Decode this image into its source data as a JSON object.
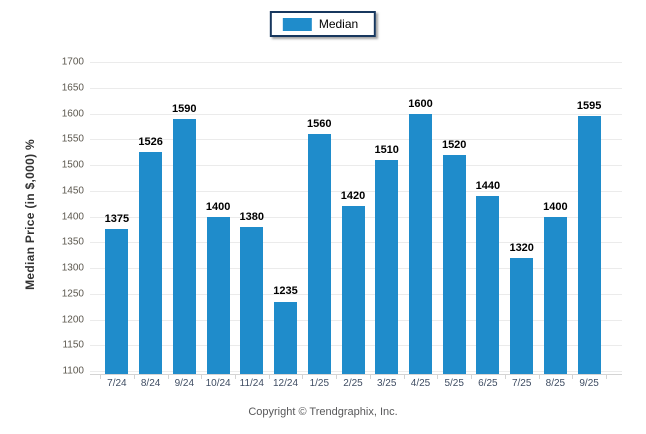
{
  "legend": {
    "label": "Median",
    "swatch_color": "#1f8ccb",
    "border_color": "#17375e"
  },
  "footer": {
    "copyright": "Copyright © Trendgraphix, Inc."
  },
  "colors": {
    "bar": "#1f8ccb",
    "gridline": "#ebebeb",
    "axis_line": "#d4d4d4",
    "y_tick_label": "#5c584f",
    "x_tick_label": "#3f4d63",
    "value_label": "#000000",
    "y_title": "#333333"
  },
  "chart_data": {
    "type": "bar",
    "title": "",
    "categories": [
      "7/24",
      "8/24",
      "9/24",
      "10/24",
      "11/24",
      "12/24",
      "1/25",
      "2/25",
      "3/25",
      "4/25",
      "5/25",
      "6/25",
      "7/25",
      "8/25",
      "9/25"
    ],
    "series": [
      {
        "name": "Median",
        "values": [
          1375,
          1526,
          1590,
          1400,
          1380,
          1235,
          1560,
          1420,
          1510,
          1600,
          1520,
          1440,
          1320,
          1400,
          1595
        ]
      }
    ],
    "xlabel": "",
    "ylabel": "Median Price (in $,000) %",
    "ylim": [
      1100,
      1700
    ],
    "y_ticks": [
      1100,
      1150,
      1200,
      1250,
      1300,
      1350,
      1400,
      1450,
      1500,
      1550,
      1600,
      1650,
      1700
    ],
    "grid": true,
    "legend_position": "top-center",
    "data_labels": true
  }
}
